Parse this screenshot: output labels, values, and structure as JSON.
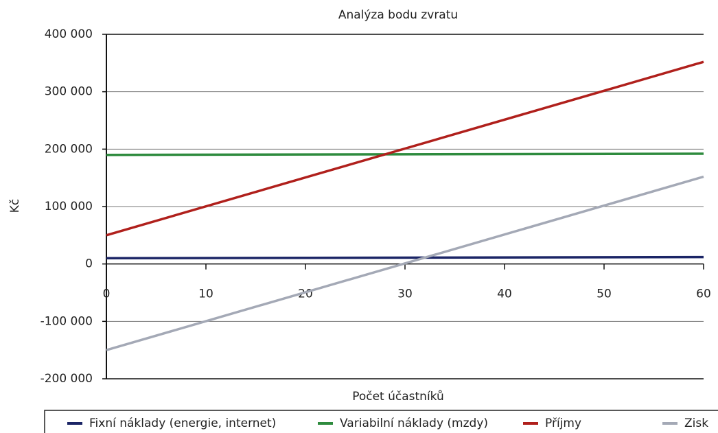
{
  "chart_data": {
    "type": "line",
    "title": "Analýza bodu zvratu",
    "xlabel": "Počet účastníků",
    "ylabel": "Kč",
    "x": [
      0,
      60
    ],
    "series": [
      {
        "name": "Fixní náklady (energie, internet)",
        "color": "#1b2566",
        "values": [
          10000,
          12000
        ]
      },
      {
        "name": "Variabilní náklady (mzdy)",
        "color": "#2e8b3e",
        "values": [
          190000,
          192000
        ]
      },
      {
        "name": "Příjmy",
        "color": "#b0201c",
        "values": [
          50000,
          352000
        ]
      },
      {
        "name": "Zisk",
        "color": "#a4a9b6",
        "values": [
          -150000,
          152000
        ]
      }
    ],
    "xlim": [
      0,
      60
    ],
    "xticks": [
      0,
      10,
      20,
      30,
      40,
      50,
      60
    ],
    "ylim": [
      -200000,
      400000
    ],
    "yticks": [
      {
        "value": -200000,
        "label": "-200 000"
      },
      {
        "value": -100000,
        "label": "-100 000"
      },
      0,
      {
        "value": 100000,
        "label": "100 000"
      },
      {
        "value": 200000,
        "label": "200 000"
      },
      {
        "value": 300000,
        "label": "300 000"
      },
      {
        "value": 400000,
        "label": "400 000"
      }
    ],
    "grid": true,
    "legend": "bottom"
  }
}
